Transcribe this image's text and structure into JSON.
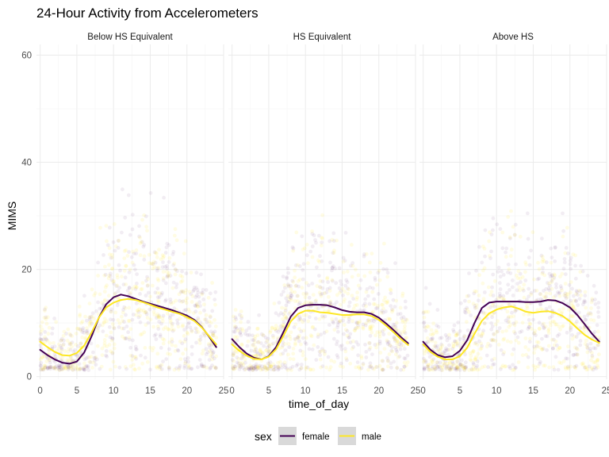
{
  "chart_data": {
    "type": "scatter",
    "title": "24-Hour Activity from Accelerometers",
    "xlabel": "time_of_day",
    "ylabel": "MIMS",
    "xlim": [
      -0.5,
      25
    ],
    "ylim": [
      -0.5,
      62
    ],
    "x_ticks": [
      0,
      5,
      10,
      15,
      20,
      25
    ],
    "y_ticks": [
      0,
      20,
      40,
      60
    ],
    "grid": true,
    "legend": {
      "title": "sex",
      "position": "bottom"
    },
    "series_colors": {
      "female": "#440154",
      "male": "#FDE725"
    },
    "panels": [
      {
        "name": "Below HS Equivalent",
        "smooth": [
          {
            "name": "female",
            "x": [
              0,
              1,
              2,
              3,
              4,
              5,
              6,
              7,
              8,
              9,
              10,
              11,
              12,
              13,
              14,
              15,
              16,
              17,
              18,
              19,
              20,
              21,
              22,
              23,
              24
            ],
            "y": [
              5.0,
              4.0,
              3.2,
              2.6,
              2.4,
              2.8,
              4.5,
              7.5,
              11.0,
              13.5,
              14.8,
              15.3,
              15.0,
              14.5,
              14.0,
              13.6,
              13.2,
              12.8,
              12.4,
              11.9,
              11.4,
              10.6,
              9.3,
              7.5,
              5.5
            ]
          },
          {
            "name": "male",
            "x": [
              0,
              1,
              2,
              3,
              4,
              5,
              6,
              7,
              8,
              9,
              10,
              11,
              12,
              13,
              14,
              15,
              16,
              17,
              18,
              19,
              20,
              21,
              22,
              23,
              24
            ],
            "y": [
              6.5,
              5.5,
              4.6,
              4.0,
              3.9,
              4.4,
              5.8,
              8.2,
              11.0,
              12.9,
              13.8,
              14.3,
              14.5,
              14.3,
              13.9,
              13.4,
              12.9,
              12.5,
              12.1,
              11.7,
              11.1,
              10.4,
              9.2,
              7.6,
              6.0
            ]
          }
        ]
      },
      {
        "name": "HS Equivalent",
        "smooth": [
          {
            "name": "female",
            "x": [
              0,
              1,
              2,
              3,
              4,
              5,
              6,
              7,
              8,
              9,
              10,
              11,
              12,
              13,
              14,
              15,
              16,
              17,
              18,
              19,
              20,
              21,
              22,
              23,
              24
            ],
            "y": [
              7.0,
              5.5,
              4.3,
              3.5,
              3.2,
              3.8,
              5.5,
              8.3,
              11.2,
              12.8,
              13.3,
              13.4,
              13.4,
              13.3,
              12.9,
              12.4,
              12.1,
              12.0,
              12.0,
              11.7,
              11.0,
              9.9,
              8.7,
              7.4,
              6.2
            ]
          },
          {
            "name": "male",
            "x": [
              0,
              1,
              2,
              3,
              4,
              5,
              6,
              7,
              8,
              9,
              10,
              11,
              12,
              13,
              14,
              15,
              16,
              17,
              18,
              19,
              20,
              21,
              22,
              23,
              24
            ],
            "y": [
              6.0,
              4.8,
              3.9,
              3.3,
              3.2,
              3.7,
              5.1,
              7.6,
              10.3,
              11.7,
              12.3,
              12.3,
              12.0,
              11.9,
              11.7,
              11.5,
              11.5,
              11.6,
              11.6,
              11.3,
              10.6,
              9.5,
              8.3,
              7.0,
              5.9
            ]
          }
        ]
      },
      {
        "name": "Above HS",
        "smooth": [
          {
            "name": "female",
            "x": [
              0,
              1,
              2,
              3,
              4,
              5,
              6,
              7,
              8,
              9,
              10,
              11,
              12,
              13,
              14,
              15,
              16,
              17,
              18,
              19,
              20,
              21,
              22,
              23,
              24
            ],
            "y": [
              6.5,
              5.0,
              4.0,
              3.6,
              3.8,
              4.8,
              6.8,
              10.0,
              12.8,
              13.8,
              14.0,
              14.0,
              14.0,
              14.0,
              13.9,
              13.9,
              14.0,
              14.3,
              14.2,
              13.7,
              12.9,
              11.5,
              9.8,
              8.0,
              6.5
            ]
          },
          {
            "name": "male",
            "x": [
              0,
              1,
              2,
              3,
              4,
              5,
              6,
              7,
              8,
              9,
              10,
              11,
              12,
              13,
              14,
              15,
              16,
              17,
              18,
              19,
              20,
              21,
              22,
              23,
              24
            ],
            "y": [
              6.0,
              4.6,
              3.7,
              3.2,
              3.2,
              3.8,
              5.4,
              8.0,
              10.4,
              11.8,
              12.5,
              12.9,
              13.1,
              12.7,
              12.1,
              11.9,
              12.1,
              12.2,
              11.9,
              11.3,
              10.3,
              9.0,
              7.8,
              6.9,
              6.3
            ]
          }
        ]
      }
    ]
  }
}
